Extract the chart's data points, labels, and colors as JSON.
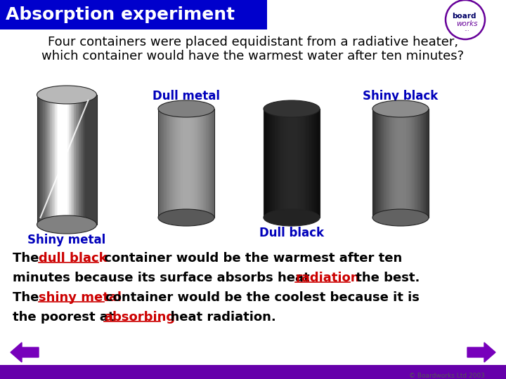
{
  "title": "Absorption experiment",
  "title_bg": "#0000cc",
  "title_color": "#ffffff",
  "title_fontsize": 18,
  "question_line1": "Four containers were placed equidistant from a radiative heater,",
  "question_line2": "which container would have the warmest water after ten minutes?",
  "question_fontsize": 13,
  "question_color": "#000000",
  "label_color": "#0000bb",
  "label_fontsize": 12,
  "answer_color": "#000000",
  "answer_highlight_color": "#cc0000",
  "answer_fontsize": 13,
  "arrow_color": "#7700bb",
  "bottom_bar_color": "#6600aa",
  "logo_circle_color": "#660099",
  "background_color": "#ffffff"
}
